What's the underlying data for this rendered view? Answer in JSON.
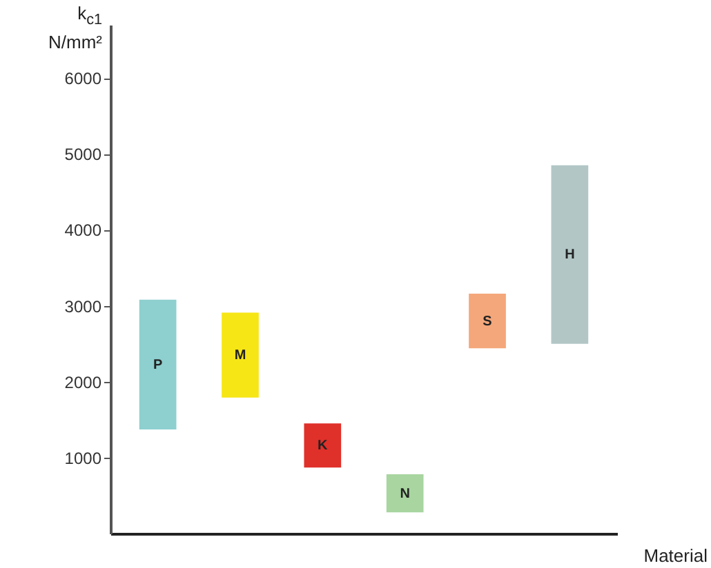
{
  "chart_data": {
    "type": "bar",
    "ylabel": "k$_{c1}$\nN/mm²",
    "xlabel": "Material",
    "categories": [
      "P",
      "M",
      "K",
      "N",
      "S",
      "H"
    ],
    "base": [
      1370,
      1790,
      870,
      280,
      2440,
      2500
    ],
    "values": [
      1710,
      1120,
      580,
      500,
      720,
      2350
    ],
    "colors": [
      "#8ecfcf",
      "#f7e616",
      "#e0302a",
      "#a8d5a0",
      "#f4a77a",
      "#b2c6c6"
    ],
    "ylim": [
      0,
      6700
    ],
    "yticks": [
      1000,
      2000,
      3000,
      4000,
      5000,
      6000
    ],
    "grid": false,
    "tick_labels": "y"
  }
}
